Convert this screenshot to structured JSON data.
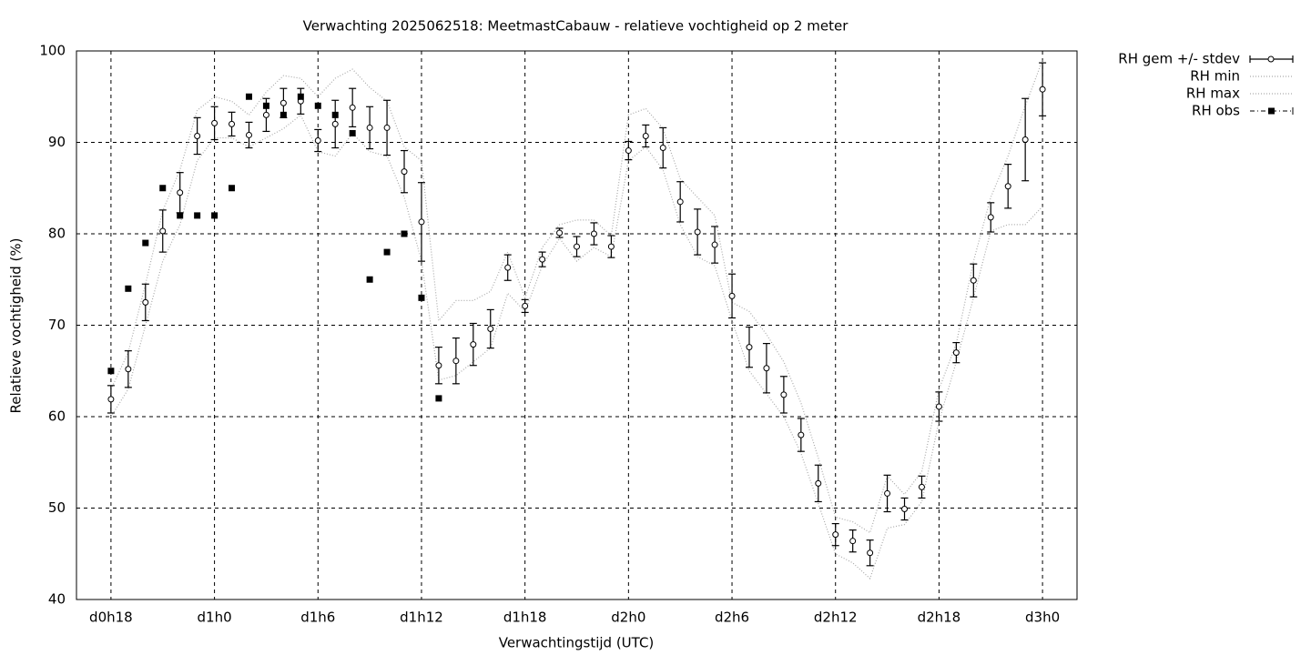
{
  "chart_data": {
    "type": "errorbar-line",
    "title": "Verwachting 2025062518: MeetmastCabauw - relatieve vochtigheid op 2 meter",
    "xlabel": "Verwachtingstijd (UTC)",
    "ylabel": "Relatieve vochtigheid (%)",
    "xlim": [
      16,
      74
    ],
    "xticks": [
      {
        "value": 18,
        "label": "d0h18"
      },
      {
        "value": 24,
        "label": "d1h0"
      },
      {
        "value": 30,
        "label": "d1h6"
      },
      {
        "value": 36,
        "label": "d1h12"
      },
      {
        "value": 42,
        "label": "d1h18"
      },
      {
        "value": 48,
        "label": "d2h0"
      },
      {
        "value": 54,
        "label": "d2h6"
      },
      {
        "value": 60,
        "label": "d2h12"
      },
      {
        "value": 66,
        "label": "d2h18"
      },
      {
        "value": 72,
        "label": "d3h0"
      }
    ],
    "ylim": [
      40,
      100
    ],
    "yticks": [
      40,
      50,
      60,
      70,
      80,
      90,
      100
    ],
    "grid": true,
    "legend": "outside-top-right",
    "series": [
      {
        "name": "RH gem +/- stdev",
        "style": "errorbars",
        "color": "#000000",
        "x": [
          18,
          19,
          20,
          21,
          22,
          23,
          24,
          25,
          26,
          27,
          28,
          29,
          30,
          31,
          32,
          33,
          34,
          35,
          36,
          37,
          38,
          39,
          40,
          41,
          42,
          43,
          44,
          45,
          46,
          47,
          48,
          49,
          50,
          51,
          52,
          53,
          54,
          55,
          56,
          57,
          58,
          59,
          60,
          61,
          62,
          63,
          64,
          65,
          66,
          67,
          68,
          69,
          70,
          71,
          72
        ],
        "values": [
          61.9,
          65.2,
          72.5,
          80.3,
          84.5,
          90.7,
          92.1,
          92.0,
          90.8,
          93.0,
          94.3,
          94.5,
          90.2,
          92.0,
          93.8,
          91.6,
          91.6,
          86.8,
          81.3,
          65.6,
          66.1,
          67.9,
          69.6,
          76.3,
          72.1,
          77.2,
          80.1,
          78.6,
          80.0,
          78.6,
          89.1,
          90.7,
          89.4,
          83.5,
          80.2,
          78.8,
          73.2,
          67.6,
          65.3,
          62.4,
          58.0,
          52.7,
          47.1,
          46.4,
          45.1,
          51.6,
          49.9,
          52.3,
          61.1,
          67.0,
          74.9,
          81.8,
          85.2,
          90.3,
          95.8
        ],
        "errors": [
          1.5,
          2.0,
          2.0,
          2.3,
          2.2,
          2.0,
          1.8,
          1.3,
          1.4,
          1.8,
          1.6,
          1.4,
          1.2,
          2.6,
          2.1,
          2.3,
          3.0,
          2.3,
          4.3,
          2.0,
          2.5,
          2.3,
          2.1,
          1.4,
          0.7,
          0.8,
          0.5,
          1.1,
          1.2,
          1.2,
          1.0,
          1.2,
          2.2,
          2.2,
          2.5,
          2.0,
          2.4,
          2.2,
          2.7,
          2.0,
          1.8,
          2.0,
          1.2,
          1.2,
          1.4,
          2.0,
          1.2,
          1.2,
          1.6,
          1.1,
          1.8,
          1.6,
          2.4,
          4.5,
          2.9
        ]
      },
      {
        "name": "RH min",
        "style": "dotted",
        "color": "#aaaaaa",
        "x": [
          18,
          19,
          20,
          21,
          22,
          23,
          24,
          25,
          26,
          27,
          28,
          29,
          30,
          31,
          32,
          33,
          34,
          35,
          36,
          37,
          38,
          39,
          40,
          41,
          42,
          43,
          44,
          45,
          46,
          47,
          48,
          49,
          50,
          51,
          52,
          53,
          54,
          55,
          56,
          57,
          58,
          59,
          60,
          61,
          62,
          63,
          64,
          65,
          66,
          67,
          68,
          69,
          70,
          71,
          72
        ],
        "values": [
          60,
          63,
          70,
          77,
          81,
          88,
          90.5,
          90.5,
          89.5,
          90.5,
          91.5,
          93,
          89,
          88.5,
          91,
          89,
          88.5,
          84,
          77,
          64,
          64.5,
          66,
          67.5,
          73.5,
          71.5,
          76.5,
          79.5,
          77,
          78.5,
          77.5,
          88,
          89.5,
          87,
          81,
          77.5,
          76.5,
          70.5,
          65,
          62.5,
          60,
          56,
          50.5,
          45,
          44,
          42.3,
          47.8,
          48.2,
          50.7,
          59.5,
          66,
          73,
          80.3,
          81,
          81,
          83
        ]
      },
      {
        "name": "RH max",
        "style": "dotted",
        "color": "#aaaaaa",
        "x": [
          18,
          19,
          20,
          21,
          22,
          23,
          24,
          25,
          26,
          27,
          28,
          29,
          30,
          31,
          32,
          33,
          34,
          35,
          36,
          37,
          38,
          39,
          40,
          41,
          42,
          43,
          44,
          45,
          46,
          47,
          48,
          49,
          50,
          51,
          52,
          53,
          54,
          55,
          56,
          57,
          58,
          59,
          60,
          61,
          62,
          63,
          64,
          65,
          66,
          67,
          68,
          69,
          70,
          71,
          72
        ],
        "values": [
          63,
          67,
          74.5,
          82.5,
          87,
          93.5,
          95,
          94.5,
          93,
          95.5,
          97.3,
          97,
          95,
          97,
          98,
          96,
          94.5,
          89.5,
          88,
          70.5,
          72.7,
          72.7,
          73.7,
          78,
          73,
          78.5,
          81,
          81.5,
          81.5,
          79.8,
          93,
          93.7,
          91.5,
          86,
          84,
          82,
          72.5,
          71.5,
          69,
          66,
          61.5,
          55.5,
          49,
          48.5,
          47.3,
          53.5,
          51.5,
          54,
          63,
          68,
          77,
          84,
          88.5,
          94,
          99
        ]
      },
      {
        "name": "RH obs",
        "style": "squares",
        "color": "#000000",
        "x": [
          18,
          19,
          20,
          21,
          22,
          23,
          24,
          25,
          26,
          27,
          28,
          29,
          30,
          31,
          32,
          33,
          34,
          35,
          36,
          37
        ],
        "values": [
          65,
          74,
          79,
          85,
          82,
          82,
          82,
          85,
          95,
          94,
          93,
          95,
          94,
          93,
          91,
          75,
          78,
          80,
          73,
          62
        ]
      }
    ]
  }
}
